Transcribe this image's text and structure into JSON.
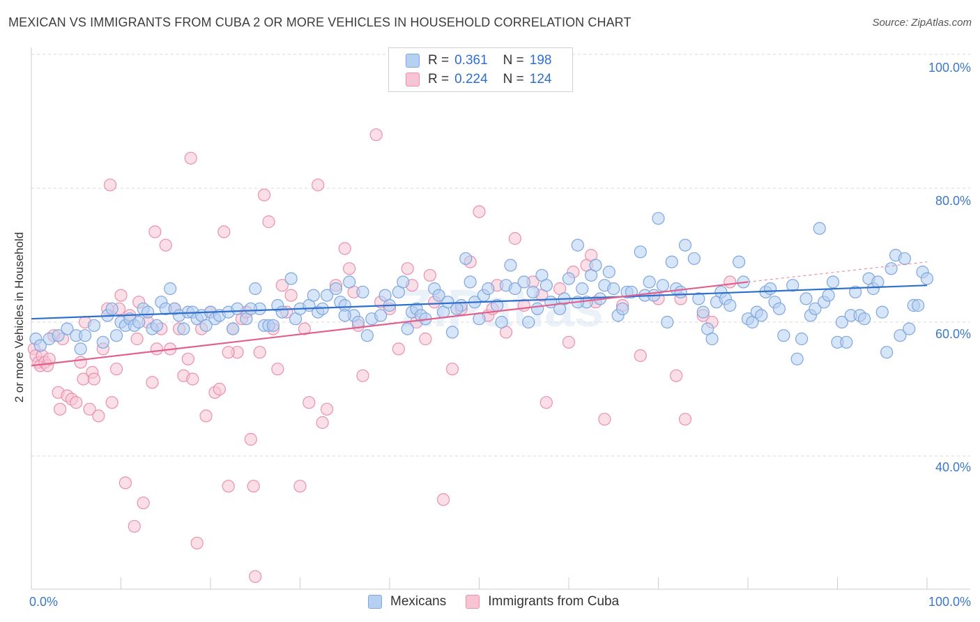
{
  "title": "MEXICAN VS IMMIGRANTS FROM CUBA 2 OR MORE VEHICLES IN HOUSEHOLD CORRELATION CHART",
  "source": "Source: ZipAtlas.com",
  "watermark": "ZIPatlas",
  "legend": {
    "mexicans": {
      "r_label": "R =",
      "r_value": "0.361",
      "n_label": "N =",
      "n_value": "198"
    },
    "cuba": {
      "r_label": "R =",
      "r_value": "0.224",
      "n_label": "N =",
      "n_value": "124"
    }
  },
  "bottom_legend": {
    "mexicans": "Mexicans",
    "cuba": "Immigrants from Cuba"
  },
  "colors": {
    "blue_fill": "#b6d0f2",
    "blue_stroke": "#7ea6de",
    "blue_line": "#2f6fcc",
    "pink_fill": "#f7c4d3",
    "pink_stroke": "#ea8fae",
    "pink_line": "#e0608e",
    "axis_label": "#3a78c8"
  },
  "chart_data": {
    "type": "scatter",
    "title": "MEXICAN VS IMMIGRANTS FROM CUBA 2 OR MORE VEHICLES IN HOUSEHOLD CORRELATION CHART",
    "xlabel": "",
    "ylabel": "2 or more Vehicles in Household",
    "x_tick_labels": [
      "0.0%",
      "100.0%"
    ],
    "y_tick_labels": [
      "40.0%",
      "60.0%",
      "80.0%",
      "100.0%"
    ],
    "xlim": [
      0,
      100
    ],
    "ylim": [
      18,
      103
    ],
    "y_gridlines": [
      40,
      60,
      80,
      100
    ],
    "grid": "dashed horizontal",
    "legend_position": "top-center",
    "series": [
      {
        "name": "Mexicans",
        "r": 0.361,
        "n": 198,
        "trend": {
          "x": [
            0,
            100
          ],
          "y": [
            60.5,
            65.5
          ]
        },
        "points": [
          [
            0.5,
            57.5
          ],
          [
            1,
            56.5
          ],
          [
            2,
            57.5
          ],
          [
            3,
            58
          ],
          [
            4,
            59
          ],
          [
            5,
            58
          ],
          [
            5.5,
            56
          ],
          [
            6,
            58
          ],
          [
            7,
            59.5
          ],
          [
            8,
            57
          ],
          [
            8.5,
            61
          ],
          [
            9,
            62
          ],
          [
            10,
            60
          ],
          [
            10.5,
            59.5
          ],
          [
            11,
            60.5
          ],
          [
            11.5,
            59.5
          ],
          [
            12,
            60
          ],
          [
            12.5,
            62
          ],
          [
            13,
            61.5
          ],
          [
            13.5,
            59
          ],
          [
            14,
            59.5
          ],
          [
            14.5,
            63
          ],
          [
            15,
            62
          ],
          [
            15.5,
            65
          ],
          [
            16,
            62
          ],
          [
            16.5,
            61
          ],
          [
            17,
            59
          ],
          [
            17.5,
            61.5
          ],
          [
            18,
            61.5
          ],
          [
            18.5,
            60.5
          ],
          [
            19,
            61
          ],
          [
            19.5,
            59.5
          ],
          [
            20,
            61.5
          ],
          [
            20.5,
            60.5
          ],
          [
            21,
            61
          ],
          [
            22,
            61.5
          ],
          [
            22.5,
            59
          ],
          [
            23,
            62
          ],
          [
            24,
            60.5
          ],
          [
            25,
            65
          ],
          [
            25.5,
            62
          ],
          [
            26,
            59.5
          ],
          [
            26.5,
            59.5
          ],
          [
            27,
            59.5
          ],
          [
            27.5,
            62.5
          ],
          [
            28,
            61.5
          ],
          [
            29,
            66.5
          ],
          [
            29.5,
            60.5
          ],
          [
            30,
            62
          ],
          [
            31,
            62.5
          ],
          [
            31.5,
            64
          ],
          [
            32,
            61.5
          ],
          [
            32.5,
            62
          ],
          [
            33,
            64
          ],
          [
            34,
            65
          ],
          [
            34.5,
            63
          ],
          [
            35,
            62.5
          ],
          [
            35.5,
            66
          ],
          [
            36,
            61
          ],
          [
            36.5,
            60
          ],
          [
            37,
            64.5
          ],
          [
            37.5,
            58
          ],
          [
            38,
            60.5
          ],
          [
            39,
            61
          ],
          [
            39.5,
            64
          ],
          [
            40,
            62.5
          ],
          [
            41,
            64.5
          ],
          [
            41.5,
            66
          ],
          [
            42,
            59
          ],
          [
            42.5,
            61.5
          ],
          [
            43,
            62
          ],
          [
            43.5,
            61
          ],
          [
            44,
            60.5
          ],
          [
            45,
            65
          ],
          [
            45.5,
            64
          ],
          [
            46,
            61.5
          ],
          [
            46.5,
            63
          ],
          [
            47,
            58.5
          ],
          [
            48,
            62.5
          ],
          [
            48.5,
            69.5
          ],
          [
            49,
            66
          ],
          [
            49.5,
            63
          ],
          [
            50,
            60.5
          ],
          [
            50.5,
            64
          ],
          [
            51,
            65
          ],
          [
            52,
            62.5
          ],
          [
            52.5,
            60
          ],
          [
            53,
            65.5
          ],
          [
            53.5,
            68.5
          ],
          [
            54,
            65
          ],
          [
            55,
            66
          ],
          [
            55.5,
            60
          ],
          [
            56,
            64.5
          ],
          [
            56.5,
            62
          ],
          [
            57,
            67
          ],
          [
            57.5,
            65.5
          ],
          [
            58,
            63
          ],
          [
            59,
            62
          ],
          [
            59.5,
            63.5
          ],
          [
            60,
            66.5
          ],
          [
            61,
            71.5
          ],
          [
            61.5,
            65
          ],
          [
            62,
            63
          ],
          [
            62.5,
            67
          ],
          [
            63,
            68.5
          ],
          [
            63.5,
            63.5
          ],
          [
            64,
            65.5
          ],
          [
            64.5,
            67.5
          ],
          [
            65,
            65
          ],
          [
            65.5,
            61
          ],
          [
            66,
            62
          ],
          [
            66.5,
            64.5
          ],
          [
            67,
            64.5
          ],
          [
            68,
            70.5
          ],
          [
            68.5,
            64
          ],
          [
            69,
            66
          ],
          [
            69.5,
            64
          ],
          [
            70,
            75.5
          ],
          [
            70.5,
            65.5
          ],
          [
            71,
            60
          ],
          [
            71.5,
            69
          ],
          [
            72,
            65
          ],
          [
            72.5,
            64.5
          ],
          [
            73,
            71.5
          ],
          [
            74,
            69.5
          ],
          [
            74.5,
            63.5
          ],
          [
            75,
            61.5
          ],
          [
            75.5,
            59
          ],
          [
            76,
            57.5
          ],
          [
            76.5,
            63
          ],
          [
            77,
            64.5
          ],
          [
            77.5,
            63.5
          ],
          [
            78,
            62.5
          ],
          [
            79,
            69
          ],
          [
            79.5,
            66
          ],
          [
            80,
            60.5
          ],
          [
            80.5,
            60
          ],
          [
            81,
            61.5
          ],
          [
            81.5,
            61
          ],
          [
            82,
            64.5
          ],
          [
            82.5,
            65
          ],
          [
            83,
            63
          ],
          [
            83.5,
            62
          ],
          [
            84,
            58
          ],
          [
            85,
            65.5
          ],
          [
            85.5,
            54.5
          ],
          [
            86,
            57.5
          ],
          [
            86.5,
            63.5
          ],
          [
            87,
            61
          ],
          [
            87.5,
            62
          ],
          [
            88,
            74
          ],
          [
            88.5,
            63
          ],
          [
            89,
            64
          ],
          [
            89.5,
            66
          ],
          [
            90,
            57
          ],
          [
            90.5,
            60
          ],
          [
            91,
            57
          ],
          [
            91.5,
            61
          ],
          [
            92,
            64.5
          ],
          [
            92.5,
            61
          ],
          [
            93,
            60.5
          ],
          [
            93.5,
            66.5
          ],
          [
            94,
            65
          ],
          [
            94.5,
            66
          ],
          [
            95,
            61.5
          ],
          [
            95.5,
            55.5
          ],
          [
            96,
            68
          ],
          [
            96.5,
            70
          ],
          [
            97,
            58
          ],
          [
            97.5,
            69.5
          ],
          [
            98,
            59
          ],
          [
            98.5,
            62.5
          ],
          [
            99,
            62.5
          ],
          [
            99.5,
            67.5
          ],
          [
            100,
            66.5
          ],
          [
            9.5,
            58
          ],
          [
            24.5,
            62
          ],
          [
            35,
            61
          ],
          [
            47.5,
            62
          ],
          [
            61,
            63
          ]
        ]
      },
      {
        "name": "Immigrants from Cuba",
        "r": 0.224,
        "n": 124,
        "trend": {
          "x": [
            0,
            80
          ],
          "y": [
            53.5,
            66
          ]
        },
        "trend_extension": {
          "x": [
            80,
            100
          ],
          "y": [
            66,
            69
          ]
        },
        "points": [
          [
            0.3,
            56
          ],
          [
            0.5,
            55
          ],
          [
            0.8,
            54
          ],
          [
            1,
            53.5
          ],
          [
            1.2,
            55
          ],
          [
            1.5,
            54
          ],
          [
            1.8,
            53.5
          ],
          [
            2,
            54.5
          ],
          [
            2.5,
            58
          ],
          [
            3,
            49.5
          ],
          [
            3.2,
            47
          ],
          [
            3.5,
            57.5
          ],
          [
            4,
            49
          ],
          [
            4.5,
            48.5
          ],
          [
            5,
            48
          ],
          [
            5.5,
            54
          ],
          [
            5.8,
            51.5
          ],
          [
            6,
            60
          ],
          [
            6.5,
            47
          ],
          [
            6.8,
            52.5
          ],
          [
            7,
            51.5
          ],
          [
            7.5,
            46
          ],
          [
            8,
            56
          ],
          [
            8.5,
            62
          ],
          [
            8.8,
            80.5
          ],
          [
            9,
            48
          ],
          [
            9.5,
            53
          ],
          [
            9.8,
            62
          ],
          [
            10,
            64
          ],
          [
            10.5,
            36
          ],
          [
            11,
            61
          ],
          [
            11.5,
            29.5
          ],
          [
            11.8,
            57.5
          ],
          [
            12,
            63
          ],
          [
            12.5,
            33
          ],
          [
            13,
            60
          ],
          [
            13.5,
            51
          ],
          [
            13.8,
            73.5
          ],
          [
            14,
            56
          ],
          [
            14.5,
            59
          ],
          [
            15,
            71.5
          ],
          [
            15.5,
            56
          ],
          [
            16,
            62
          ],
          [
            16.5,
            59
          ],
          [
            17,
            52
          ],
          [
            17.5,
            54.5
          ],
          [
            17.8,
            84.5
          ],
          [
            18,
            51.5
          ],
          [
            18.5,
            27
          ],
          [
            19,
            59
          ],
          [
            19.5,
            46
          ],
          [
            20,
            61.5
          ],
          [
            20.5,
            49.5
          ],
          [
            21,
            50
          ],
          [
            21.5,
            73.5
          ],
          [
            22,
            35.5
          ],
          [
            22.5,
            59
          ],
          [
            23,
            55.5
          ],
          [
            23.5,
            60.5
          ],
          [
            24,
            61.5
          ],
          [
            24.5,
            42.5
          ],
          [
            24.8,
            35.5
          ],
          [
            25,
            22
          ],
          [
            25.5,
            55.5
          ],
          [
            26,
            79
          ],
          [
            26.5,
            75
          ],
          [
            27,
            59
          ],
          [
            27.5,
            53
          ],
          [
            28,
            65.5
          ],
          [
            28.5,
            61.5
          ],
          [
            29,
            64
          ],
          [
            30,
            35.5
          ],
          [
            30.5,
            59
          ],
          [
            31,
            48
          ],
          [
            32,
            80.5
          ],
          [
            32.5,
            45
          ],
          [
            33,
            47
          ],
          [
            34,
            65.5
          ],
          [
            35,
            71
          ],
          [
            35.5,
            68
          ],
          [
            36,
            64.5
          ],
          [
            36.5,
            59.5
          ],
          [
            37,
            52
          ],
          [
            38.5,
            88
          ],
          [
            39,
            63
          ],
          [
            40,
            62
          ],
          [
            41,
            56
          ],
          [
            42,
            68
          ],
          [
            42.5,
            65.5
          ],
          [
            43,
            60
          ],
          [
            44,
            57.5
          ],
          [
            44.5,
            67
          ],
          [
            45,
            63
          ],
          [
            46,
            33.5
          ],
          [
            47,
            53
          ],
          [
            48,
            62
          ],
          [
            49,
            69
          ],
          [
            50,
            76.5
          ],
          [
            51,
            61
          ],
          [
            51.5,
            62
          ],
          [
            52,
            65.5
          ],
          [
            53,
            58.5
          ],
          [
            54,
            72.5
          ],
          [
            55,
            62.5
          ],
          [
            56,
            66
          ],
          [
            57,
            64
          ],
          [
            57.5,
            48
          ],
          [
            59,
            65
          ],
          [
            60,
            57
          ],
          [
            60.5,
            67.5
          ],
          [
            62,
            68.5
          ],
          [
            62.5,
            70
          ],
          [
            63,
            63
          ],
          [
            64,
            45.5
          ],
          [
            66,
            62.5
          ],
          [
            68,
            55
          ],
          [
            70,
            63.5
          ],
          [
            72,
            52
          ],
          [
            72.5,
            63.5
          ],
          [
            73,
            45.5
          ],
          [
            75,
            61
          ],
          [
            76,
            60
          ],
          [
            78,
            66
          ],
          [
            22,
            55.5
          ]
        ]
      }
    ]
  }
}
